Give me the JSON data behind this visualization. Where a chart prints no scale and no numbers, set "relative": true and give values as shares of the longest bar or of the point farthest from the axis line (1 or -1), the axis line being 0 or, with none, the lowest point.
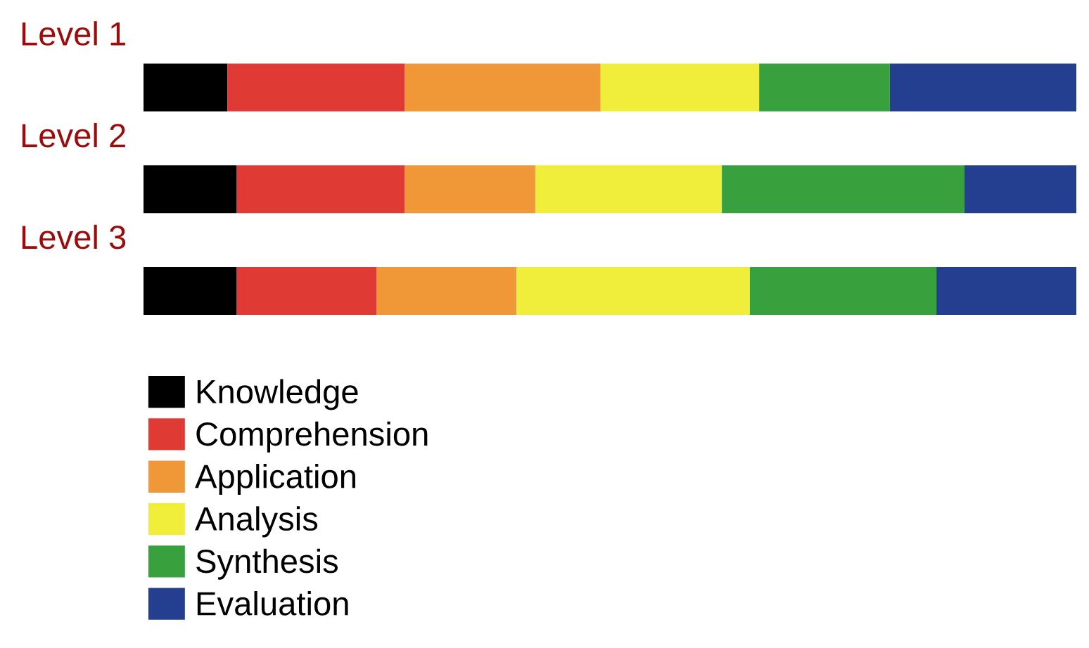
{
  "chart_data": {
    "type": "bar",
    "orientation": "horizontal",
    "stacked": true,
    "relative": true,
    "categories": [
      "Level 1",
      "Level 2",
      "Level 3"
    ],
    "series": [
      {
        "name": "Knowledge",
        "color": "#000000",
        "values": [
          0.09,
          0.1,
          0.1
        ]
      },
      {
        "name": "Comprehension",
        "color": "#e03a35",
        "values": [
          0.19,
          0.18,
          0.15
        ]
      },
      {
        "name": "Application",
        "color": "#f09838",
        "values": [
          0.21,
          0.14,
          0.15
        ]
      },
      {
        "name": "Analysis",
        "color": "#f0ee3a",
        "values": [
          0.17,
          0.2,
          0.25
        ]
      },
      {
        "name": "Synthesis",
        "color": "#38a03c",
        "values": [
          0.14,
          0.26,
          0.2
        ]
      },
      {
        "name": "Evaluation",
        "color": "#243f90",
        "values": [
          0.2,
          0.12,
          0.15
        ]
      }
    ],
    "legend": "bottom"
  }
}
